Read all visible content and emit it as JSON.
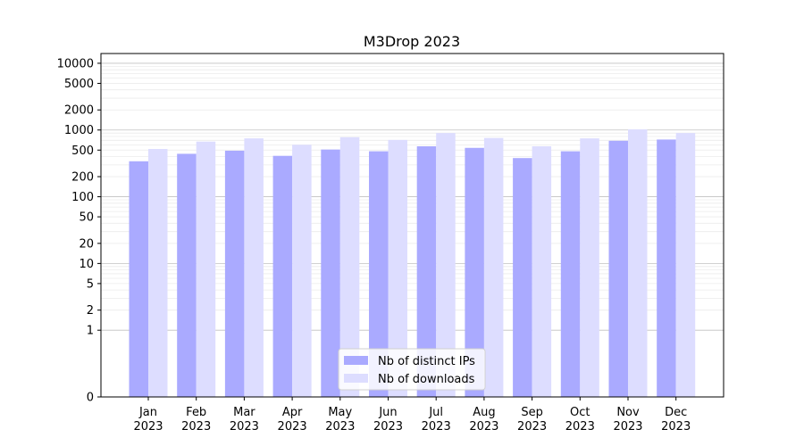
{
  "chart_data": {
    "type": "bar",
    "title": "M3Drop 2023",
    "xlabel": "",
    "ylabel": "",
    "yscale": "symlog",
    "ylim": [
      0,
      14000
    ],
    "yticks": [
      "0",
      "1",
      "2",
      "5",
      "10",
      "20",
      "50",
      "100",
      "200",
      "500",
      "1000",
      "2000",
      "5000",
      "10000"
    ],
    "categories": [
      [
        "Jan",
        "2023"
      ],
      [
        "Feb",
        "2023"
      ],
      [
        "Mar",
        "2023"
      ],
      [
        "Apr",
        "2023"
      ],
      [
        "May",
        "2023"
      ],
      [
        "Jun",
        "2023"
      ],
      [
        "Jul",
        "2023"
      ],
      [
        "Aug",
        "2023"
      ],
      [
        "Sep",
        "2023"
      ],
      [
        "Oct",
        "2023"
      ],
      [
        "Nov",
        "2023"
      ],
      [
        "Dec",
        "2023"
      ]
    ],
    "series": [
      {
        "name": "Nb of distinct IPs",
        "color": "#aaaaff",
        "values": [
          340,
          440,
          490,
          410,
          510,
          480,
          570,
          540,
          380,
          480,
          690,
          720
        ]
      },
      {
        "name": "Nb of downloads",
        "color": "#ddddff",
        "values": [
          520,
          670,
          750,
          600,
          780,
          710,
          900,
          760,
          570,
          750,
          1020,
          900
        ]
      }
    ],
    "grid": true,
    "legend_position": "bottom-center"
  }
}
